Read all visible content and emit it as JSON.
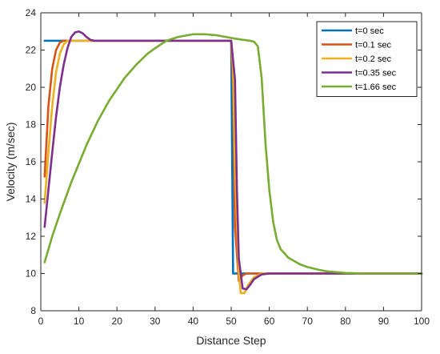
{
  "chart_data": {
    "type": "line",
    "title": "",
    "xlabel": "Distance Step",
    "ylabel": "Velocity (m/sec)",
    "xlim": [
      0,
      100
    ],
    "ylim": [
      8,
      24
    ],
    "xticks": [
      0,
      10,
      20,
      30,
      40,
      50,
      60,
      70,
      80,
      90,
      100
    ],
    "yticks": [
      8,
      10,
      12,
      14,
      16,
      18,
      20,
      22,
      24
    ],
    "grid": false,
    "legend_position": "top-right",
    "series": [
      {
        "name": "t=0 sec",
        "color": "#0072BD",
        "points": [
          [
            1,
            22.5
          ],
          [
            50,
            22.5
          ],
          [
            50.5,
            10.0
          ],
          [
            100,
            10.0
          ]
        ]
      },
      {
        "name": "t=0.1 sec",
        "color": "#D95319",
        "points": [
          [
            1,
            15.2
          ],
          [
            2,
            19.0
          ],
          [
            3,
            21.0
          ],
          [
            4,
            22.0
          ],
          [
            5,
            22.4
          ],
          [
            6,
            22.5
          ],
          [
            50,
            22.5
          ],
          [
            50.5,
            20.0
          ],
          [
            51,
            12.5
          ],
          [
            52,
            9.6
          ],
          [
            53,
            9.9
          ],
          [
            54,
            10.0
          ],
          [
            100,
            10.0
          ]
        ]
      },
      {
        "name": "t=0.2 sec",
        "color": "#EDB120",
        "points": [
          [
            1,
            13.8
          ],
          [
            2,
            16.5
          ],
          [
            3,
            19.0
          ],
          [
            4,
            20.8
          ],
          [
            5,
            21.8
          ],
          [
            6,
            22.3
          ],
          [
            7,
            22.5
          ],
          [
            50,
            22.5
          ],
          [
            50.5,
            21.0
          ],
          [
            51,
            15.5
          ],
          [
            52,
            10.0
          ],
          [
            52.5,
            8.95
          ],
          [
            53.5,
            8.95
          ],
          [
            54.5,
            9.4
          ],
          [
            56,
            9.8
          ],
          [
            58,
            10.0
          ],
          [
            100,
            10.0
          ]
        ]
      },
      {
        "name": "t=0.35 sec",
        "color": "#7E2F8E",
        "points": [
          [
            1,
            12.5
          ],
          [
            2,
            14.5
          ],
          [
            3,
            16.5
          ],
          [
            4,
            18.4
          ],
          [
            5,
            20.0
          ],
          [
            6,
            21.2
          ],
          [
            7,
            22.1
          ],
          [
            8,
            22.7
          ],
          [
            9,
            22.95
          ],
          [
            10,
            23.0
          ],
          [
            11,
            22.9
          ],
          [
            12,
            22.7
          ],
          [
            13,
            22.55
          ],
          [
            14,
            22.5
          ],
          [
            50,
            22.5
          ],
          [
            51,
            20.4
          ],
          [
            51.5,
            14.5
          ],
          [
            52,
            10.8
          ],
          [
            53,
            9.2
          ],
          [
            54,
            9.15
          ],
          [
            55,
            9.4
          ],
          [
            56,
            9.7
          ],
          [
            58,
            9.95
          ],
          [
            60,
            10.0
          ],
          [
            100,
            10.0
          ]
        ]
      },
      {
        "name": "t=1.66 sec",
        "color": "#77AC30",
        "points": [
          [
            1,
            10.6
          ],
          [
            3,
            12.0
          ],
          [
            5,
            13.2
          ],
          [
            8,
            14.9
          ],
          [
            10,
            15.9
          ],
          [
            12,
            16.9
          ],
          [
            15,
            18.2
          ],
          [
            18,
            19.3
          ],
          [
            20,
            19.9
          ],
          [
            22,
            20.5
          ],
          [
            25,
            21.2
          ],
          [
            28,
            21.8
          ],
          [
            30,
            22.1
          ],
          [
            33,
            22.5
          ],
          [
            36,
            22.7
          ],
          [
            40,
            22.85
          ],
          [
            43,
            22.85
          ],
          [
            46,
            22.8
          ],
          [
            50,
            22.65
          ],
          [
            53,
            22.55
          ],
          [
            55,
            22.5
          ],
          [
            56,
            22.45
          ],
          [
            57,
            22.2
          ],
          [
            58,
            20.5
          ],
          [
            59,
            17.0
          ],
          [
            60,
            14.5
          ],
          [
            61,
            12.8
          ],
          [
            62,
            11.8
          ],
          [
            63,
            11.3
          ],
          [
            65,
            10.85
          ],
          [
            68,
            10.5
          ],
          [
            70,
            10.35
          ],
          [
            73,
            10.2
          ],
          [
            75,
            10.12
          ],
          [
            80,
            10.03
          ],
          [
            85,
            10.0
          ],
          [
            100,
            10.0
          ]
        ]
      }
    ]
  }
}
